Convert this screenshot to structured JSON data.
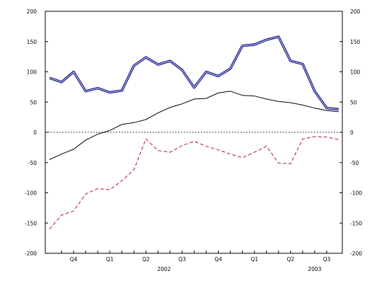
{
  "chart_data": {
    "type": "line",
    "title": "",
    "xlabel": "",
    "ylabel": "",
    "ylim": [
      -200,
      200
    ],
    "yticks": [
      -200,
      -150,
      -100,
      -50,
      0,
      50,
      100,
      150,
      200
    ],
    "ytick_labels": [
      "-200",
      "-150",
      "-100",
      "-50",
      "0",
      "50",
      "100",
      "150",
      "200"
    ],
    "right_axis_mirrors_left": true,
    "grid": false,
    "zero_line": {
      "style": "dotted",
      "color": "#000000"
    },
    "x_period_labels": [
      "Q4",
      "Q1",
      "Q2",
      "Q3",
      "Q4",
      "Q1",
      "Q2",
      "Q3"
    ],
    "x_year_labels": [
      "2002",
      "2003"
    ],
    "x": [
      1,
      2,
      3,
      4,
      5,
      6,
      7,
      8,
      9,
      10,
      11,
      12,
      13,
      14,
      15,
      16,
      17,
      18,
      19,
      20,
      21,
      22,
      23,
      24,
      25
    ],
    "series": [
      {
        "style": "thick-double",
        "color": "#1a1a8c",
        "values": [
          90,
          83,
          100,
          68,
          73,
          66,
          69,
          110,
          124,
          112,
          118,
          103,
          74,
          100,
          93,
          105,
          143,
          145,
          153,
          158,
          118,
          113,
          68,
          40,
          38
        ]
      },
      {
        "style": "solid-thin",
        "color": "#000000",
        "values": [
          -45,
          -36,
          -28,
          -13,
          -3,
          3,
          13,
          16,
          21,
          32,
          41,
          47,
          55,
          56,
          65,
          68,
          61,
          60,
          55,
          51,
          49,
          45,
          40,
          36,
          34
        ]
      },
      {
        "style": "dashed",
        "color": "#b01050",
        "values": [
          -160,
          -137,
          -130,
          -102,
          -93,
          -95,
          -80,
          -62,
          -11,
          -30,
          -33,
          -22,
          -15,
          -23,
          -29,
          -36,
          -42,
          -33,
          -23,
          -51,
          -52,
          -11,
          -7,
          -8,
          -12
        ]
      }
    ]
  }
}
